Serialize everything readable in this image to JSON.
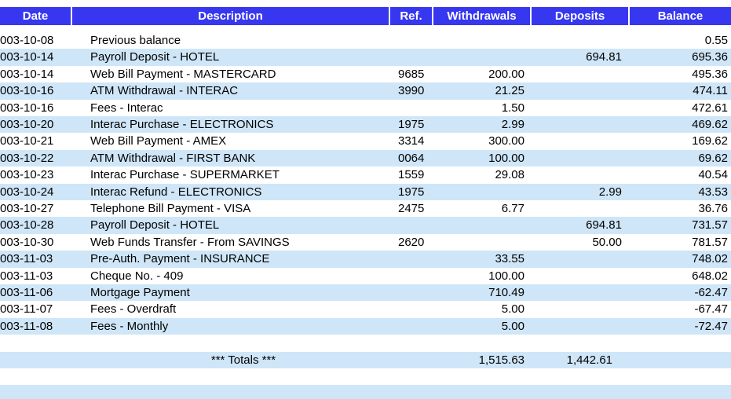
{
  "header": {
    "columns": [
      "Date",
      "Description",
      "Ref.",
      "Withdrawals",
      "Deposits",
      "Balance"
    ]
  },
  "table": {
    "rows": [
      {
        "date": "003-10-08",
        "description": "Previous balance",
        "balance": "0.55"
      },
      {
        "date": "003-10-14",
        "description": "Payroll Deposit - HOTEL",
        "deposit": "694.81",
        "balance": "695.36"
      },
      {
        "date": "003-10-14",
        "description": "Web Bill Payment - MASTERCARD",
        "ref": "9685",
        "withdrawal": "200.00",
        "balance": "495.36"
      },
      {
        "date": "003-10-16",
        "description": "ATM Withdrawal - INTERAC",
        "ref": "3990",
        "withdrawal": "21.25",
        "balance": "474.11"
      },
      {
        "date": "003-10-16",
        "description": "Fees - Interac",
        "withdrawal": "1.50",
        "balance": "472.61"
      },
      {
        "date": "003-10-20",
        "description": "Interac Purchase - ELECTRONICS",
        "ref": "1975",
        "withdrawal": "2.99",
        "balance": "469.62"
      },
      {
        "date": "003-10-21",
        "description": "Web Bill Payment - AMEX",
        "ref": "3314",
        "withdrawal": "300.00",
        "balance": "169.62"
      },
      {
        "date": "003-10-22",
        "description": "ATM Withdrawal - FIRST BANK",
        "ref": "0064",
        "withdrawal": "100.00",
        "balance": "69.62"
      },
      {
        "date": "003-10-23",
        "description": "Interac Purchase - SUPERMARKET",
        "ref": "1559",
        "withdrawal": "29.08",
        "balance": "40.54"
      },
      {
        "date": "003-10-24",
        "description": "Interac Refund - ELECTRONICS",
        "ref": "1975",
        "deposit": "2.99",
        "balance": "43.53"
      },
      {
        "date": "003-10-27",
        "description": "Telephone Bill Payment - VISA",
        "ref": "2475",
        "withdrawal": "6.77",
        "balance": "36.76"
      },
      {
        "date": "003-10-28",
        "description": "Payroll Deposit - HOTEL",
        "deposit": "694.81",
        "balance": "731.57"
      },
      {
        "date": "003-10-30",
        "description": "Web Funds Transfer - From  SAVINGS",
        "ref": "2620",
        "deposit": "50.00",
        "balance": "781.57"
      },
      {
        "date": "003-11-03",
        "description": "Pre-Auth. Payment - INSURANCE",
        "withdrawal": "33.55",
        "balance": "748.02"
      },
      {
        "date": "003-11-03",
        "description": "Cheque No. - 409",
        "withdrawal": "100.00",
        "balance": "648.02"
      },
      {
        "date": "003-11-06",
        "description": "Mortgage Payment",
        "withdrawal": "710.49",
        "balance": "-62.47"
      },
      {
        "date": "003-11-07",
        "description": "Fees - Overdraft",
        "withdrawal": "5.00",
        "balance": "-67.47"
      },
      {
        "date": "003-11-08",
        "description": "Fees - Monthly",
        "withdrawal": "5.00",
        "balance": "-72.47"
      }
    ]
  },
  "totals": {
    "label": "*** Totals ***",
    "withdrawals": "1,515.63",
    "deposits": "1,442.61"
  }
}
